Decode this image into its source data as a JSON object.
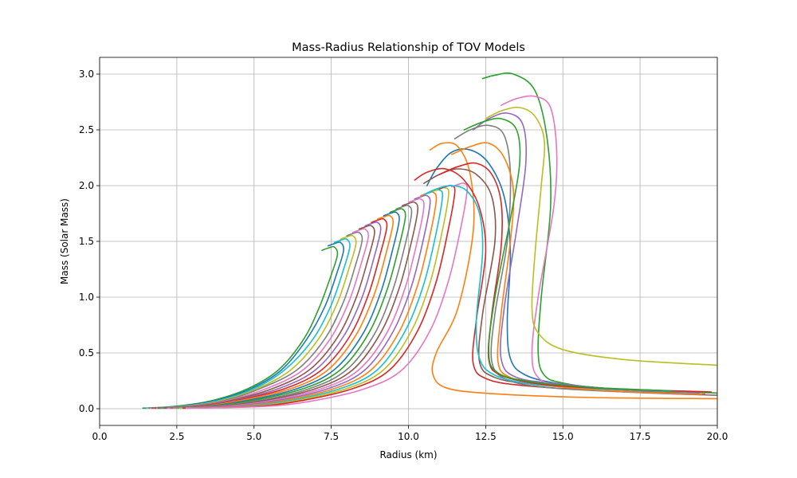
{
  "chart_data": {
    "type": "line",
    "title": "Mass-Radius Relationship of TOV Models",
    "xlabel": "Radius (km)",
    "ylabel": "Mass (Solar Mass)",
    "xlim": [
      0,
      20
    ],
    "ylim": [
      -0.15,
      3.15
    ],
    "xticks": [
      0.0,
      2.5,
      5.0,
      7.5,
      10.0,
      12.5,
      15.0,
      17.5,
      20.0
    ],
    "xtick_labels": [
      "0.0",
      "2.5",
      "5.0",
      "7.5",
      "10.0",
      "12.5",
      "15.0",
      "17.5",
      "20.0"
    ],
    "yticks": [
      0.0,
      0.5,
      1.0,
      1.5,
      2.0,
      2.5,
      3.0
    ],
    "ytick_labels": [
      "0.0",
      "0.5",
      "1.0",
      "1.5",
      "2.0",
      "2.5",
      "3.0"
    ],
    "grid": true,
    "color_cycle": [
      "#1f77b4",
      "#ff7f0e",
      "#2ca02c",
      "#d62728",
      "#9467bd",
      "#8c564b",
      "#e377c2",
      "#7f7f7f",
      "#bcbd22",
      "#17becf"
    ],
    "series": [
      {
        "color": "#2ca02c",
        "x": [
          1.4,
          2.4,
          3.6,
          4.8,
          5.8,
          6.6,
          7.1,
          7.5,
          7.7,
          7.6,
          7.4,
          7.2
        ],
        "y": [
          0.005,
          0.02,
          0.07,
          0.18,
          0.35,
          0.62,
          0.9,
          1.2,
          1.38,
          1.45,
          1.44,
          1.42
        ]
      },
      {
        "color": "#1f77b4",
        "x": [
          1.45,
          2.5,
          3.7,
          4.9,
          5.9,
          6.7,
          7.3,
          7.7,
          7.9,
          7.8,
          7.6,
          7.4
        ],
        "y": [
          0.005,
          0.02,
          0.07,
          0.18,
          0.35,
          0.62,
          0.92,
          1.23,
          1.42,
          1.49,
          1.48,
          1.46
        ]
      },
      {
        "color": "#17becf",
        "x": [
          1.5,
          2.6,
          3.8,
          5.0,
          6.0,
          6.9,
          7.5,
          7.9,
          8.1,
          8.0,
          7.8,
          7.6
        ],
        "y": [
          0.005,
          0.02,
          0.07,
          0.18,
          0.35,
          0.62,
          0.93,
          1.25,
          1.45,
          1.52,
          1.51,
          1.49
        ]
      },
      {
        "color": "#bcbd22",
        "x": [
          1.55,
          2.7,
          3.9,
          5.1,
          6.2,
          7.1,
          7.7,
          8.1,
          8.3,
          8.2,
          8.0,
          7.8
        ],
        "y": [
          0.005,
          0.02,
          0.07,
          0.18,
          0.35,
          0.63,
          0.95,
          1.28,
          1.48,
          1.55,
          1.54,
          1.52
        ]
      },
      {
        "color": "#7f7f7f",
        "x": [
          1.6,
          2.8,
          4.0,
          5.2,
          6.4,
          7.3,
          7.9,
          8.3,
          8.5,
          8.4,
          8.2,
          8.0
        ],
        "y": [
          0.005,
          0.02,
          0.07,
          0.18,
          0.35,
          0.63,
          0.96,
          1.3,
          1.51,
          1.58,
          1.57,
          1.55
        ]
      },
      {
        "color": "#e377c2",
        "x": [
          1.65,
          2.9,
          4.1,
          5.4,
          6.6,
          7.5,
          8.1,
          8.5,
          8.7,
          8.6,
          8.4,
          8.2
        ],
        "y": [
          0.005,
          0.02,
          0.07,
          0.18,
          0.35,
          0.64,
          0.98,
          1.33,
          1.54,
          1.61,
          1.6,
          1.58
        ]
      },
      {
        "color": "#8c564b",
        "x": [
          1.7,
          3.0,
          4.2,
          5.6,
          6.8,
          7.7,
          8.3,
          8.7,
          8.9,
          8.8,
          8.6,
          8.4
        ],
        "y": [
          0.005,
          0.02,
          0.07,
          0.18,
          0.35,
          0.64,
          0.99,
          1.35,
          1.57,
          1.64,
          1.63,
          1.61
        ]
      },
      {
        "color": "#9467bd",
        "x": [
          1.75,
          3.1,
          4.3,
          5.8,
          7.0,
          7.9,
          8.5,
          8.9,
          9.1,
          9.0,
          8.8,
          8.6
        ],
        "y": [
          0.005,
          0.02,
          0.07,
          0.18,
          0.35,
          0.65,
          1.0,
          1.37,
          1.6,
          1.67,
          1.66,
          1.64
        ]
      },
      {
        "color": "#d62728",
        "x": [
          1.8,
          3.2,
          4.4,
          6.0,
          7.2,
          8.1,
          8.7,
          9.1,
          9.3,
          9.2,
          9.0,
          8.8
        ],
        "y": [
          0.005,
          0.02,
          0.07,
          0.18,
          0.35,
          0.65,
          1.02,
          1.4,
          1.63,
          1.7,
          1.69,
          1.67
        ]
      },
      {
        "color": "#ff7f0e",
        "x": [
          1.85,
          3.3,
          4.5,
          6.2,
          7.4,
          8.3,
          8.9,
          9.3,
          9.5,
          9.4,
          9.2,
          9.0
        ],
        "y": [
          0.005,
          0.02,
          0.07,
          0.18,
          0.35,
          0.66,
          1.03,
          1.42,
          1.66,
          1.73,
          1.72,
          1.7
        ]
      },
      {
        "color": "#1f77b4",
        "x": [
          1.9,
          3.4,
          4.7,
          6.4,
          7.6,
          8.5,
          9.1,
          9.5,
          9.7,
          9.6,
          9.4,
          9.2
        ],
        "y": [
          0.005,
          0.02,
          0.07,
          0.18,
          0.35,
          0.66,
          1.04,
          1.44,
          1.69,
          1.76,
          1.75,
          1.73
        ]
      },
      {
        "color": "#2ca02c",
        "x": [
          1.95,
          3.5,
          4.9,
          6.6,
          7.8,
          8.7,
          9.3,
          9.7,
          9.9,
          9.8,
          9.6,
          9.4
        ],
        "y": [
          0.005,
          0.02,
          0.07,
          0.18,
          0.35,
          0.67,
          1.06,
          1.46,
          1.72,
          1.79,
          1.78,
          1.76
        ]
      },
      {
        "color": "#7f7f7f",
        "x": [
          2.0,
          3.6,
          5.1,
          6.8,
          8.0,
          8.9,
          9.5,
          9.9,
          10.1,
          10.0,
          9.8,
          9.6
        ],
        "y": [
          0.005,
          0.02,
          0.07,
          0.18,
          0.35,
          0.67,
          1.07,
          1.48,
          1.75,
          1.82,
          1.81,
          1.79
        ]
      },
      {
        "color": "#8c564b",
        "x": [
          2.1,
          3.8,
          5.3,
          7.0,
          8.2,
          9.1,
          9.7,
          10.1,
          10.3,
          10.2,
          10.0,
          9.8
        ],
        "y": [
          0.005,
          0.02,
          0.07,
          0.18,
          0.35,
          0.68,
          1.08,
          1.5,
          1.78,
          1.85,
          1.84,
          1.82
        ]
      },
      {
        "color": "#e377c2",
        "x": [
          2.2,
          4.0,
          5.5,
          7.2,
          8.4,
          9.3,
          9.9,
          10.3,
          10.5,
          10.4,
          10.2,
          10.0
        ],
        "y": [
          0.005,
          0.02,
          0.07,
          0.18,
          0.35,
          0.68,
          1.09,
          1.52,
          1.81,
          1.88,
          1.87,
          1.85
        ]
      },
      {
        "color": "#9467bd",
        "x": [
          2.3,
          4.2,
          5.7,
          7.4,
          8.6,
          9.5,
          10.1,
          10.5,
          10.7,
          10.6,
          10.4,
          10.2
        ],
        "y": [
          0.005,
          0.02,
          0.07,
          0.18,
          0.35,
          0.69,
          1.1,
          1.54,
          1.84,
          1.91,
          1.9,
          1.88
        ]
      },
      {
        "color": "#ff7f0e",
        "x": [
          2.4,
          4.4,
          5.9,
          7.6,
          8.8,
          9.7,
          10.3,
          10.7,
          10.9,
          10.8,
          10.6,
          10.4
        ],
        "y": [
          0.005,
          0.02,
          0.07,
          0.18,
          0.35,
          0.69,
          1.11,
          1.56,
          1.87,
          1.94,
          1.93,
          1.91
        ]
      },
      {
        "color": "#17becf",
        "x": [
          2.5,
          4.6,
          6.1,
          7.8,
          9.0,
          9.9,
          10.5,
          10.9,
          11.1,
          11.0,
          10.8,
          10.6
        ],
        "y": [
          0.005,
          0.02,
          0.07,
          0.18,
          0.35,
          0.7,
          1.12,
          1.58,
          1.9,
          1.96,
          1.95,
          1.93
        ]
      },
      {
        "color": "#bcbd22",
        "x": [
          2.6,
          4.8,
          6.3,
          8.0,
          9.2,
          10.1,
          10.7,
          11.1,
          11.3,
          11.2,
          11.0,
          10.8
        ],
        "y": [
          0.005,
          0.02,
          0.07,
          0.18,
          0.35,
          0.7,
          1.13,
          1.6,
          1.92,
          1.98,
          1.97,
          1.95
        ]
      },
      {
        "color": "#d62728",
        "x": [
          2.7,
          5.0,
          6.5,
          8.2,
          9.4,
          10.3,
          10.9,
          11.3,
          11.5,
          11.4,
          11.2,
          11.0
        ],
        "y": [
          0.005,
          0.02,
          0.07,
          0.18,
          0.35,
          0.7,
          1.14,
          1.62,
          1.94,
          2.0,
          1.99,
          1.97
        ]
      },
      {
        "color": "#e377c2",
        "x": [
          2.8,
          5.3,
          6.9,
          8.6,
          9.8,
          10.7,
          11.3,
          11.7,
          11.9,
          11.8,
          11.6,
          11.4
        ],
        "y": [
          0.005,
          0.02,
          0.07,
          0.18,
          0.35,
          0.7,
          1.15,
          1.63,
          1.96,
          2.02,
          2.01,
          1.99
        ]
      },
      {
        "color": "#1f77b4",
        "x": [
          19.5,
          17.0,
          15.0,
          13.8,
          13.3,
          13.2,
          13.3,
          13.1,
          12.6,
          12.0,
          11.4,
          10.9,
          10.6
        ],
        "y": [
          0.13,
          0.17,
          0.22,
          0.3,
          0.45,
          0.8,
          1.4,
          1.9,
          2.2,
          2.32,
          2.3,
          2.15,
          2.0
        ]
      },
      {
        "color": "#ff7f0e",
        "x": [
          20.0,
          16.0,
          13.0,
          11.3,
          10.8,
          10.9,
          11.6,
          12.1,
          12.0,
          11.6,
          11.1,
          10.7
        ],
        "y": [
          0.09,
          0.1,
          0.13,
          0.18,
          0.3,
          0.5,
          0.9,
          1.6,
          2.1,
          2.35,
          2.38,
          2.32
        ]
      },
      {
        "color": "#2ca02c",
        "x": [
          20.0,
          16.5,
          15.0,
          14.4,
          14.2,
          14.3,
          14.6,
          14.5,
          14.1,
          13.4,
          12.8,
          12.4
        ],
        "y": [
          0.14,
          0.18,
          0.23,
          0.3,
          0.5,
          1.0,
          1.8,
          2.4,
          2.85,
          3.0,
          2.99,
          2.96
        ]
      },
      {
        "color": "#d62728",
        "x": [
          19.6,
          16.5,
          14.0,
          12.6,
          12.1,
          12.2,
          12.5,
          12.3,
          11.8,
          11.2,
          10.6,
          10.2
        ],
        "y": [
          0.13,
          0.16,
          0.2,
          0.26,
          0.4,
          0.8,
          1.4,
          1.8,
          2.05,
          2.15,
          2.12,
          2.05
        ]
      },
      {
        "color": "#9467bd",
        "x": [
          19.4,
          17.0,
          15.0,
          13.5,
          13.0,
          13.1,
          13.5,
          13.8,
          13.7,
          13.2,
          12.6,
          12.1
        ],
        "y": [
          0.14,
          0.17,
          0.22,
          0.28,
          0.45,
          0.9,
          1.6,
          2.2,
          2.55,
          2.65,
          2.6,
          2.5
        ]
      },
      {
        "color": "#8c564b",
        "x": [
          18.8,
          16.0,
          14.0,
          12.8,
          12.3,
          12.4,
          12.8,
          12.7,
          12.2,
          11.6,
          11.0,
          10.5
        ],
        "y": [
          0.15,
          0.18,
          0.22,
          0.28,
          0.42,
          0.85,
          1.5,
          1.9,
          2.1,
          2.15,
          2.1,
          2.02
        ]
      },
      {
        "color": "#e377c2",
        "x": [
          20.0,
          17.0,
          15.0,
          14.2,
          14.0,
          14.2,
          14.7,
          14.8,
          14.6,
          14.1,
          13.5,
          13.0
        ],
        "y": [
          0.12,
          0.15,
          0.2,
          0.28,
          0.5,
          1.0,
          1.8,
          2.3,
          2.7,
          2.8,
          2.78,
          2.72
        ]
      },
      {
        "color": "#7f7f7f",
        "x": [
          20.0,
          17.0,
          14.5,
          13.2,
          12.7,
          12.8,
          13.2,
          13.3,
          13.1,
          12.6,
          12.0,
          11.5
        ],
        "y": [
          0.12,
          0.15,
          0.19,
          0.26,
          0.42,
          0.85,
          1.5,
          2.1,
          2.45,
          2.54,
          2.5,
          2.42
        ]
      },
      {
        "color": "#bcbd22",
        "x": [
          20.0,
          17.0,
          15.0,
          14.2,
          14.0,
          14.1,
          14.3,
          14.4,
          14.1,
          13.6,
          13.0,
          12.5
        ],
        "y": [
          0.39,
          0.44,
          0.53,
          0.68,
          0.9,
          1.4,
          2.0,
          2.4,
          2.62,
          2.7,
          2.67,
          2.6
        ]
      },
      {
        "color": "#17becf",
        "x": [
          19.0,
          16.0,
          14.0,
          12.8,
          12.3,
          12.2,
          12.4,
          12.3,
          11.9,
          11.4,
          10.9,
          10.5
        ],
        "y": [
          0.15,
          0.18,
          0.22,
          0.3,
          0.45,
          0.8,
          1.4,
          1.75,
          1.95,
          2.0,
          1.97,
          1.92
        ]
      },
      {
        "color": "#ff7f0e",
        "x": [
          19.5,
          16.5,
          14.5,
          13.3,
          12.9,
          13.0,
          13.3,
          13.4,
          13.1,
          12.6,
          12.0,
          11.4
        ],
        "y": [
          0.13,
          0.16,
          0.21,
          0.28,
          0.42,
          0.85,
          1.5,
          1.95,
          2.25,
          2.38,
          2.35,
          2.28
        ]
      },
      {
        "color": "#d62728",
        "x": [
          19.8,
          16.5,
          14.3,
          13.0,
          12.6,
          12.7,
          13.0,
          13.0,
          12.7,
          12.2,
          11.6,
          11.0
        ],
        "y": [
          0.15,
          0.18,
          0.22,
          0.3,
          0.44,
          0.85,
          1.45,
          1.85,
          2.1,
          2.2,
          2.17,
          2.1
        ]
      },
      {
        "color": "#2ca02c",
        "x": [
          18.5,
          16.0,
          14.0,
          12.9,
          12.6,
          12.8,
          13.3,
          13.6,
          13.5,
          13.0,
          12.4,
          11.8
        ],
        "y": [
          0.16,
          0.19,
          0.24,
          0.32,
          0.5,
          1.0,
          1.7,
          2.2,
          2.5,
          2.6,
          2.57,
          2.5
        ]
      }
    ]
  }
}
